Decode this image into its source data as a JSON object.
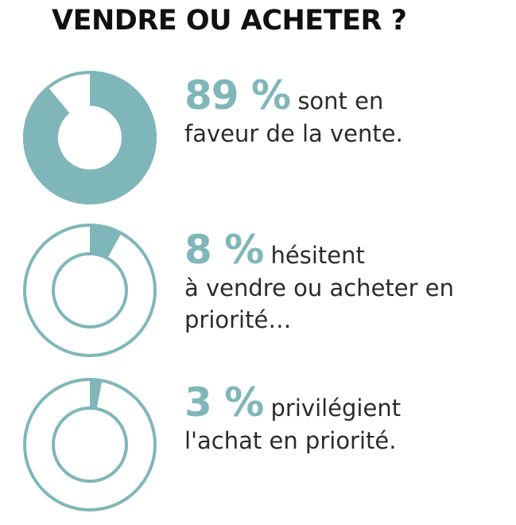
{
  "title": "VENDRE OU ACHETER ?",
  "colors": {
    "accent": "#7fb6ba",
    "text": "#2b2b2b",
    "title": "#111111"
  },
  "chart_data": [
    {
      "type": "pie",
      "values": [
        89
      ],
      "label": "89 %",
      "text_first": "sont  en",
      "text_rest": "faveur de la vente.",
      "style": "filled"
    },
    {
      "type": "pie",
      "values": [
        8
      ],
      "label": "8 %",
      "text_first": "hésitent",
      "text_rest": "à vendre ou acheter en priorité…",
      "style": "outline"
    },
    {
      "type": "pie",
      "values": [
        3
      ],
      "label": "3 %",
      "text_first": "privilégient",
      "text_rest": "l'achat en priorité.",
      "style": "outline"
    }
  ]
}
